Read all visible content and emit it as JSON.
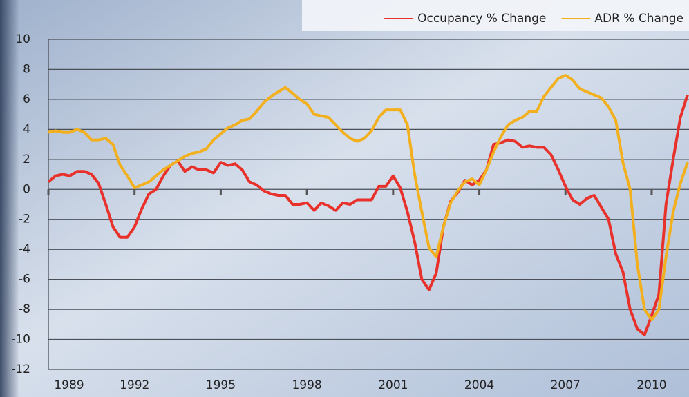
{
  "chart_data": {
    "type": "line",
    "x": [
      1989,
      1989.25,
      1989.5,
      1989.75,
      1990,
      1990.25,
      1990.5,
      1990.75,
      1991,
      1991.25,
      1991.5,
      1991.75,
      1992,
      1992.25,
      1992.5,
      1992.75,
      1993,
      1993.25,
      1993.5,
      1993.75,
      1994,
      1994.25,
      1994.5,
      1994.75,
      1995,
      1995.25,
      1995.5,
      1995.75,
      1996,
      1996.25,
      1996.5,
      1996.75,
      1997,
      1997.25,
      1997.5,
      1997.75,
      1998,
      1998.25,
      1998.5,
      1998.75,
      1999,
      1999.25,
      1999.5,
      1999.75,
      2000,
      2000.25,
      2000.5,
      2000.75,
      2001,
      2001.25,
      2001.5,
      2001.75,
      2002,
      2002.25,
      2002.5,
      2002.75,
      2003,
      2003.25,
      2003.5,
      2003.75,
      2004,
      2004.25,
      2004.5,
      2004.75,
      2005,
      2005.25,
      2005.5,
      2005.75,
      2006,
      2006.25,
      2006.5,
      2006.75,
      2007,
      2007.25,
      2007.5,
      2007.75,
      2008,
      2008.25,
      2008.5,
      2008.75,
      2009,
      2009.25,
      2009.5,
      2009.75,
      2010,
      2010.25,
      2010.5,
      2010.75,
      2011,
      2011.25
    ],
    "series": [
      {
        "name": "Occupancy % Change",
        "color": "#e8312a",
        "values": [
          0.5,
          0.9,
          1.0,
          0.9,
          1.2,
          1.2,
          1.0,
          0.4,
          -1.0,
          -2.5,
          -3.2,
          -3.2,
          -2.5,
          -1.3,
          -0.3,
          0.0,
          0.9,
          1.6,
          1.9,
          1.2,
          1.5,
          1.3,
          1.3,
          1.1,
          1.8,
          1.6,
          1.7,
          1.3,
          0.5,
          0.3,
          -0.1,
          -0.3,
          -0.4,
          -0.4,
          -1.0,
          -1.0,
          -0.9,
          -1.4,
          -0.9,
          -1.1,
          -1.4,
          -0.9,
          -1.0,
          -0.7,
          -0.7,
          -0.7,
          0.2,
          0.2,
          0.9,
          0.1,
          -1.5,
          -3.5,
          -6.0,
          -6.7,
          -5.6,
          -2.5,
          -0.8,
          -0.2,
          0.6,
          0.3,
          0.6,
          1.3,
          3.0,
          3.1,
          3.3,
          3.2,
          2.8,
          2.9,
          2.8,
          2.8,
          2.3,
          1.3,
          0.2,
          -0.7,
          -1.0,
          -0.6,
          -0.4,
          -1.2,
          -2.0,
          -4.3,
          -5.5,
          -8.0,
          -9.3,
          -9.7,
          -8.4,
          -7.0,
          -1.0,
          2.0,
          4.8,
          6.3
        ]
      },
      {
        "name": "ADR % Change",
        "color": "#f2b01e",
        "values": [
          3.8,
          3.9,
          3.8,
          3.8,
          4.0,
          3.8,
          3.3,
          3.3,
          3.4,
          3.0,
          1.6,
          0.9,
          0.1,
          0.3,
          0.5,
          0.9,
          1.3,
          1.6,
          1.9,
          2.2,
          2.4,
          2.5,
          2.7,
          3.3,
          3.7,
          4.1,
          4.3,
          4.6,
          4.7,
          5.2,
          5.8,
          6.2,
          6.5,
          6.8,
          6.4,
          6.0,
          5.7,
          5.0,
          4.9,
          4.8,
          4.3,
          3.8,
          3.4,
          3.2,
          3.4,
          3.9,
          4.8,
          5.3,
          5.3,
          5.3,
          4.3,
          1.0,
          -1.5,
          -3.9,
          -4.5,
          -2.5,
          -0.9,
          -0.1,
          0.5,
          0.7,
          0.3,
          1.3,
          2.5,
          3.5,
          4.3,
          4.6,
          4.8,
          5.2,
          5.2,
          6.2,
          6.8,
          7.4,
          7.6,
          7.3,
          6.7,
          6.5,
          6.3,
          6.1,
          5.5,
          4.6,
          1.8,
          0.0,
          -5.0,
          -8.0,
          -8.7,
          -8.0,
          -4.5,
          -1.5,
          0.4,
          1.8
        ]
      }
    ],
    "xlim": [
      1989,
      2011.3
    ],
    "xticks": [
      1989,
      1992,
      1995,
      1998,
      2001,
      2004,
      2007,
      2010
    ],
    "ylim": [
      -12,
      10
    ],
    "yticks": [
      -12,
      -10,
      -8,
      -6,
      -4,
      -2,
      0,
      2,
      4,
      6,
      8,
      10
    ],
    "grid": true,
    "legend": "upper right"
  }
}
